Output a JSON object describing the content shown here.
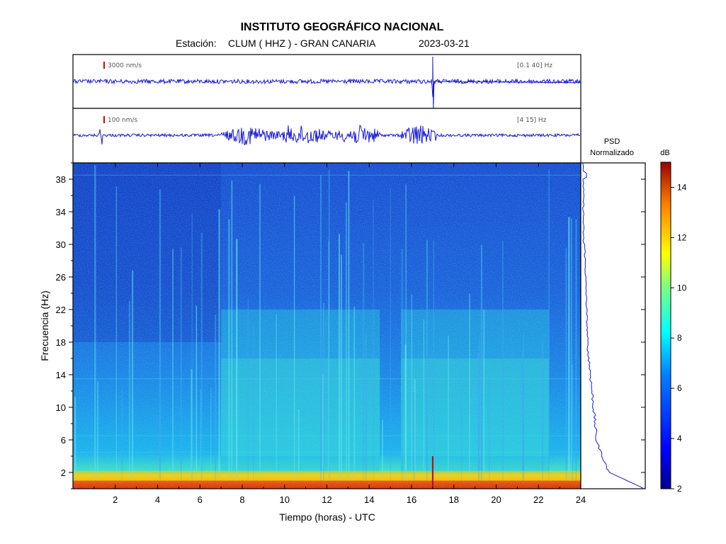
{
  "header": {
    "institute": "INSTITUTO GEOGRÁFICO NACIONAL",
    "station_label": "Estación:",
    "station": "CLUM ( HHZ ) - GRAN CANARIA",
    "date": "2023-03-21"
  },
  "traces": [
    {
      "scale_label": "3000 nm/s",
      "band_label": "[0.1 40] Hz"
    },
    {
      "scale_label": "100 nm/s",
      "band_label": "[4 15] Hz"
    }
  ],
  "psd": {
    "title_line1": "PSD",
    "title_line2": "Normalizado"
  },
  "colorbar": {
    "unit": "dB",
    "min": 2,
    "max": 15,
    "ticks": [
      "2",
      "4",
      "6",
      "8",
      "10",
      "12",
      "14"
    ]
  },
  "colors": {
    "trace": "#1a1ad6",
    "marker": "#d40000"
  },
  "chart_data": {
    "type": "heatmap",
    "xlabel": "Tiempo (horas) - UTC",
    "ylabel": "Frecuencia (Hz)",
    "xlim": [
      0,
      24
    ],
    "ylim": [
      0,
      40
    ],
    "x_ticks": [
      "2",
      "4",
      "6",
      "8",
      "10",
      "12",
      "14",
      "16",
      "18",
      "20",
      "22",
      "24"
    ],
    "y_ticks": [
      "2",
      "6",
      "10",
      "14",
      "18",
      "22",
      "26",
      "30",
      "34",
      "38"
    ],
    "colormap": "jet",
    "energy_bands_hz": [
      {
        "range": [
          0,
          2
        ],
        "level_db": 13
      },
      {
        "range": [
          2,
          6
        ],
        "level_db": 7
      },
      {
        "range": [
          6,
          16
        ],
        "level_db": 5.5
      },
      {
        "range": [
          16,
          40
        ],
        "level_db": 4
      }
    ],
    "active_periods_hours": [
      [
        7,
        14.5
      ],
      [
        15.5,
        22.5
      ]
    ],
    "event_hour": 17
  }
}
